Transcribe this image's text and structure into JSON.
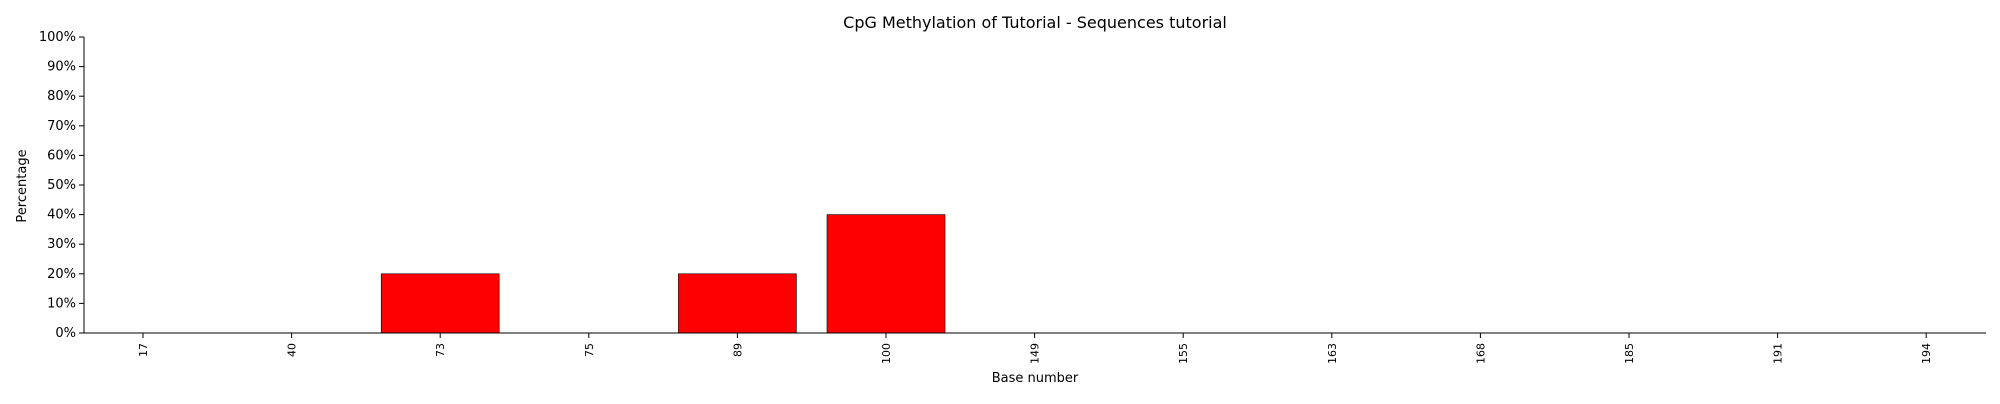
{
  "chart_data": {
    "type": "bar",
    "title": "CpG Methylation of Tutorial - Sequences tutorial",
    "xlabel": "Base number",
    "ylabel": "Percentage",
    "categories": [
      "17",
      "40",
      "73",
      "75",
      "89",
      "100",
      "149",
      "155",
      "163",
      "168",
      "185",
      "191",
      "194"
    ],
    "values": [
      0,
      0,
      20,
      0,
      20,
      40,
      0,
      0,
      0,
      0,
      0,
      0,
      0
    ],
    "ylim": [
      0,
      100
    ],
    "ytick_values": [
      0,
      10,
      20,
      30,
      40,
      50,
      60,
      70,
      80,
      90,
      100
    ],
    "ytick_labels": [
      "0%",
      "10%",
      "20%",
      "30%",
      "40%",
      "50%",
      "60%",
      "70%",
      "80%",
      "90%",
      "100%"
    ],
    "bar_color": "#ff0000",
    "grid": false,
    "legend": false
  }
}
